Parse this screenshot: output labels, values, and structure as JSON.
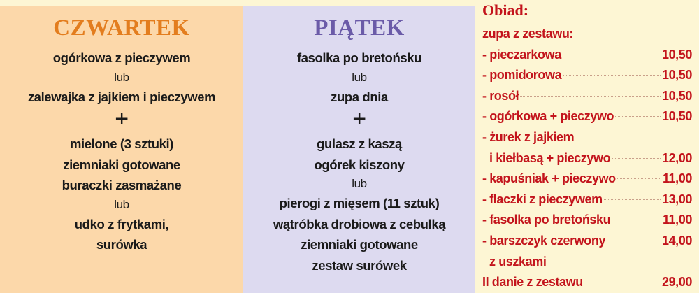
{
  "thursday": {
    "title": "CZWARTEK",
    "lines": [
      {
        "text": "ogórkowa z pieczywem",
        "kind": "dish"
      },
      {
        "text": "lub",
        "kind": "lub"
      },
      {
        "text": "zalewajka z jajkiem i pieczywem",
        "kind": "dish"
      },
      {
        "text": "+",
        "kind": "plus"
      },
      {
        "text": "mielone (3 sztuki)",
        "kind": "dish"
      },
      {
        "text": "ziemniaki gotowane",
        "kind": "dish"
      },
      {
        "text": "buraczki zasmażane",
        "kind": "dish"
      },
      {
        "text": "lub",
        "kind": "lub"
      },
      {
        "text": "udko z frytkami,",
        "kind": "dish"
      },
      {
        "text": "surówka",
        "kind": "dish"
      }
    ]
  },
  "friday": {
    "title": "PIĄTEK",
    "lines": [
      {
        "text": "fasolka po bretońsku",
        "kind": "dish"
      },
      {
        "text": "lub",
        "kind": "lub"
      },
      {
        "text": "zupa dnia",
        "kind": "dish"
      },
      {
        "text": "+",
        "kind": "plus"
      },
      {
        "text": "gulasz z kaszą",
        "kind": "dish"
      },
      {
        "text": "ogórek kiszony",
        "kind": "dish"
      },
      {
        "text": "lub",
        "kind": "lub"
      },
      {
        "text": "pierogi z mięsem (11 sztuk)",
        "kind": "dish"
      },
      {
        "text": "wątróbka drobiowa z cebulką",
        "kind": "dish"
      },
      {
        "text": "ziemniaki gotowane",
        "kind": "dish"
      },
      {
        "text": "zestaw surówek",
        "kind": "dish"
      }
    ]
  },
  "lunch": {
    "heading": "Obiad:",
    "rows": [
      {
        "name": "zupa z zestawu:",
        "price": "",
        "dots": false,
        "indent": false
      },
      {
        "name": "- pieczarkowa",
        "price": "10,50",
        "dots": true,
        "indent": false
      },
      {
        "name": "- pomidorowa",
        "price": "10,50",
        "dots": true,
        "indent": false
      },
      {
        "name": "- rosół",
        "price": "10,50",
        "dots": true,
        "indent": false
      },
      {
        "name": "- ogórkowa + pieczywo",
        "price": "10,50",
        "dots": true,
        "indent": false
      },
      {
        "name": "- żurek z jajkiem",
        "price": "",
        "dots": false,
        "indent": false
      },
      {
        "name": "i kiełbasą + pieczywo",
        "price": "12,00",
        "dots": true,
        "indent": true
      },
      {
        "name": "- kapuśniak + pieczywo",
        "price": "11,00",
        "dots": true,
        "indent": false
      },
      {
        "name": "- flaczki z pieczywem",
        "price": "13,00",
        "dots": true,
        "indent": false
      },
      {
        "name": "- fasolka po bretońsku",
        "price": "11,00",
        "dots": true,
        "indent": false
      },
      {
        "name": "- barszczyk czerwony",
        "price": "14,00",
        "dots": true,
        "indent": false
      },
      {
        "name": "z uszkami",
        "price": "",
        "dots": false,
        "indent": true
      },
      {
        "name": "II danie z zestawu",
        "price": "29,00",
        "dots": false,
        "indent": false
      }
    ]
  },
  "colors": {
    "thursday_bg": "#fcd8aa",
    "thursday_title": "#e37d1e",
    "friday_bg": "#dddaf0",
    "friday_title": "#6b5ba8",
    "price_text": "#c3141c",
    "page_bg": "#fdf6d4"
  }
}
